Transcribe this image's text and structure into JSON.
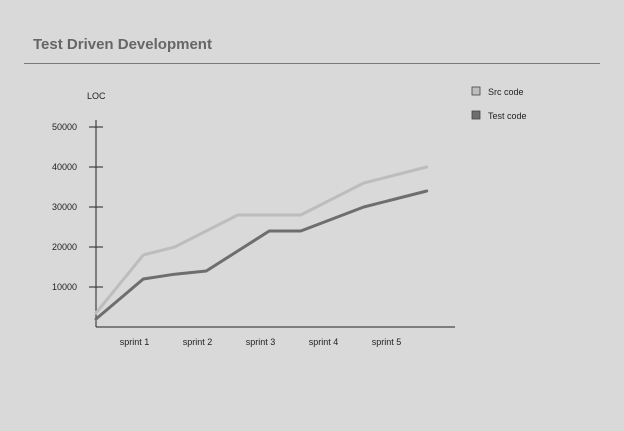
{
  "title": "Test Driven Development",
  "chart_data": {
    "type": "line",
    "title": "Test Driven Development",
    "ylabel": "LOC",
    "xlabel": "",
    "categories": [
      "sprint 1",
      "sprint 2",
      "sprint 3",
      "sprint 4",
      "sprint 5"
    ],
    "ylim": [
      0,
      50000
    ],
    "yticks": [
      10000,
      20000,
      30000,
      40000,
      50000
    ],
    "ytick_labels": [
      "10000",
      "20000",
      "30000",
      "40000",
      "50000"
    ],
    "x": [
      0,
      0.75,
      1.25,
      1.75,
      2.25,
      2.75,
      3.25,
      3.75,
      4.25,
      4.75,
      5.25
    ],
    "series": [
      {
        "name": "Src code",
        "color": "#bdbdbd",
        "values": [
          3500,
          18000,
          20000,
          24000,
          28000,
          28000,
          28000,
          32000,
          36000,
          38000,
          40000
        ]
      },
      {
        "name": "Test code",
        "color": "#6e6e6e",
        "values": [
          2000,
          12000,
          13200,
          14000,
          19000,
          24000,
          24000,
          27000,
          30000,
          32000,
          34000
        ]
      }
    ],
    "legend_position": "top-right",
    "grid": false
  }
}
